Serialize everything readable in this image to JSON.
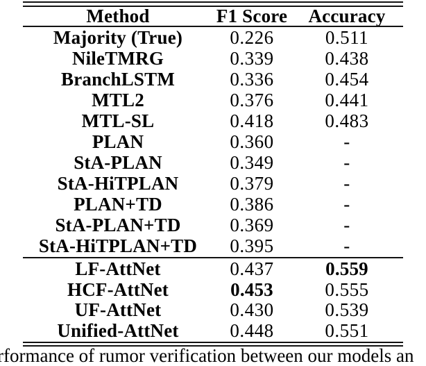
{
  "page": {
    "background": "#ffffff",
    "text_color": "#000000",
    "rule_color": "#121212"
  },
  "table": {
    "header": {
      "method": "Method",
      "f1": "F1 Score",
      "acc": "Accuracy"
    },
    "baseline_rows": [
      {
        "method": "Majority (True)",
        "f1": "0.226",
        "acc": "0.511",
        "f1_bold": false,
        "acc_bold": false
      },
      {
        "method": "NileTMRG",
        "f1": "0.339",
        "acc": "0.438",
        "f1_bold": false,
        "acc_bold": false
      },
      {
        "method": "BranchLSTM",
        "f1": "0.336",
        "acc": "0.454",
        "f1_bold": false,
        "acc_bold": false
      },
      {
        "method": "MTL2",
        "f1": "0.376",
        "acc": "0.441",
        "f1_bold": false,
        "acc_bold": false
      },
      {
        "method": "MTL-SL",
        "f1": "0.418",
        "acc": "0.483",
        "f1_bold": false,
        "acc_bold": false
      },
      {
        "method": "PLAN",
        "f1": "0.360",
        "acc": "-",
        "f1_bold": false,
        "acc_bold": false
      },
      {
        "method": "StA-PLAN",
        "f1": "0.349",
        "acc": "-",
        "f1_bold": false,
        "acc_bold": false
      },
      {
        "method": "StA-HiTPLAN",
        "f1": "0.379",
        "acc": "-",
        "f1_bold": false,
        "acc_bold": false
      },
      {
        "method": "PLAN+TD",
        "f1": "0.386",
        "acc": "-",
        "f1_bold": false,
        "acc_bold": false
      },
      {
        "method": "StA-PLAN+TD",
        "f1": "0.369",
        "acc": "-",
        "f1_bold": false,
        "acc_bold": false
      },
      {
        "method": "StA-HiTPLAN+TD",
        "f1": "0.395",
        "acc": "-",
        "f1_bold": false,
        "acc_bold": false
      }
    ],
    "our_rows": [
      {
        "method": "LF-AttNet",
        "f1": "0.437",
        "acc": "0.559",
        "f1_bold": false,
        "acc_bold": true
      },
      {
        "method": "HCF-AttNet",
        "f1": "0.453",
        "acc": "0.555",
        "f1_bold": true,
        "acc_bold": false
      },
      {
        "method": "UF-AttNet",
        "f1": "0.430",
        "acc": "0.539",
        "f1_bold": false,
        "acc_bold": false
      },
      {
        "method": "Unified-AttNet",
        "f1": "0.448",
        "acc": "0.551",
        "f1_bold": false,
        "acc_bold": false
      }
    ]
  },
  "caption": {
    "visible_text": "rformance of rumor verification between our models an"
  }
}
